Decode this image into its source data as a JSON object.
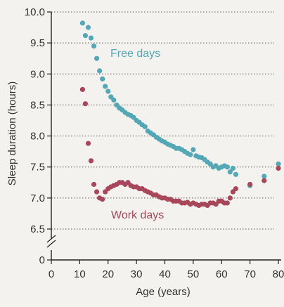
{
  "chart_data": {
    "type": "scatter",
    "xlabel": "Age (years)",
    "ylabel": "Sleep duration (hours)",
    "xlim": [
      0,
      80
    ],
    "ylim": [
      6.0,
      10.0
    ],
    "x_ticks": [
      "0",
      "10",
      "20",
      "30",
      "40",
      "50",
      "60",
      "70",
      "80"
    ],
    "y_ticks": [
      "0",
      "6.5",
      "7.0",
      "7.5",
      "8.0",
      "8.5",
      "9.0",
      "9.5",
      "10.0"
    ],
    "y_axis_break": true,
    "grid": "horizontal-dotted",
    "series": [
      {
        "name": "Free days",
        "color": "#54a8b6",
        "x": [
          11,
          12,
          13,
          14,
          15,
          16,
          17,
          18,
          19,
          20,
          21,
          22,
          23,
          24,
          25,
          26,
          27,
          28,
          29,
          30,
          31,
          32,
          33,
          34,
          35,
          36,
          37,
          38,
          39,
          40,
          41,
          42,
          43,
          44,
          45,
          46,
          47,
          48,
          49,
          50,
          51,
          52,
          53,
          54,
          55,
          56,
          57,
          58,
          59,
          60,
          61,
          62,
          63,
          64,
          65,
          70,
          75,
          80
        ],
        "y": [
          9.82,
          9.62,
          9.75,
          9.58,
          9.45,
          9.25,
          9.05,
          8.92,
          8.8,
          8.72,
          8.63,
          8.58,
          8.5,
          8.45,
          8.42,
          8.38,
          8.35,
          8.33,
          8.3,
          8.25,
          8.22,
          8.18,
          8.15,
          8.08,
          8.05,
          8.02,
          7.98,
          7.95,
          7.92,
          7.9,
          7.87,
          7.85,
          7.83,
          7.8,
          7.8,
          7.78,
          7.75,
          7.72,
          7.7,
          7.78,
          7.68,
          7.66,
          7.65,
          7.62,
          7.58,
          7.55,
          7.5,
          7.52,
          7.48,
          7.5,
          7.52,
          7.5,
          7.42,
          7.48,
          7.38,
          7.2,
          7.35,
          7.55
        ]
      },
      {
        "name": "Work days",
        "color": "#a8475a",
        "x": [
          11,
          12,
          13,
          14,
          15,
          16,
          17,
          18,
          19,
          20,
          21,
          22,
          23,
          24,
          25,
          26,
          27,
          28,
          29,
          30,
          31,
          32,
          33,
          34,
          35,
          36,
          37,
          38,
          39,
          40,
          41,
          42,
          43,
          44,
          45,
          46,
          47,
          48,
          49,
          50,
          51,
          52,
          53,
          54,
          55,
          56,
          57,
          58,
          59,
          60,
          61,
          62,
          63,
          64,
          65,
          70,
          75,
          80
        ],
        "y": [
          8.75,
          8.52,
          7.88,
          7.6,
          7.22,
          7.1,
          7.0,
          6.98,
          7.1,
          7.15,
          7.18,
          7.2,
          7.22,
          7.25,
          7.25,
          7.22,
          7.25,
          7.2,
          7.18,
          7.18,
          7.15,
          7.15,
          7.12,
          7.1,
          7.08,
          7.05,
          7.05,
          7.02,
          7.0,
          7.0,
          6.98,
          6.98,
          6.95,
          6.95,
          6.95,
          6.92,
          6.92,
          6.93,
          6.9,
          6.92,
          6.9,
          6.88,
          6.9,
          6.9,
          6.88,
          6.92,
          6.92,
          6.9,
          6.95,
          6.95,
          6.92,
          6.92,
          7.0,
          7.1,
          7.15,
          7.22,
          7.28,
          7.48
        ]
      }
    ],
    "annotations": [
      "Free days",
      "Work days"
    ]
  }
}
